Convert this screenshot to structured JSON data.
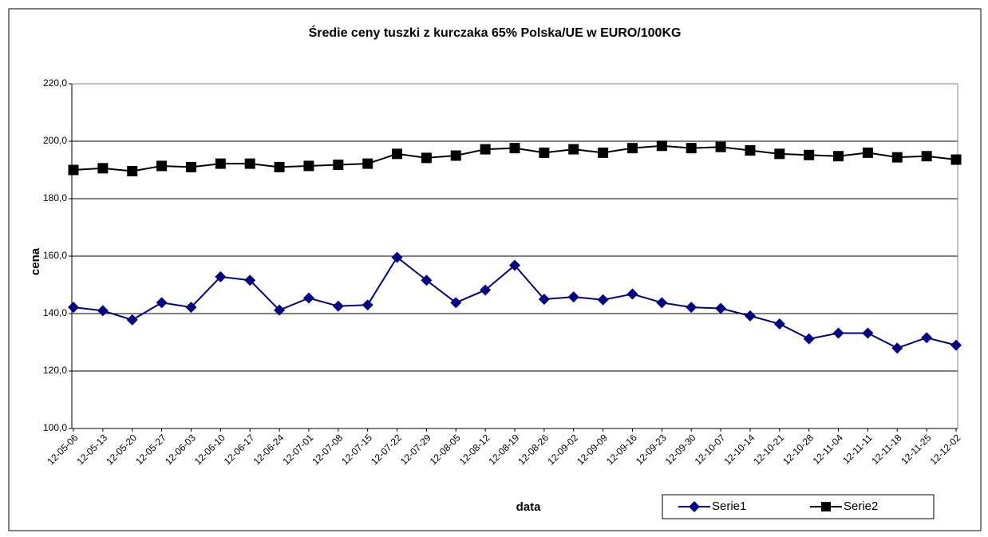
{
  "chart_data": {
    "type": "line",
    "title": "Średie ceny tuszki z kurczaka 65% Polska/UE w EURO/100KG",
    "x_label": "data",
    "y_label": "cena",
    "categories": [
      "12-05-06",
      "12-05-13",
      "12-05-20",
      "12-05-27",
      "12-06-03",
      "12-06-10",
      "12-06-17",
      "12-06-24",
      "12-07-01",
      "12-07-08",
      "12-07-15",
      "12-07-22",
      "12-07-29",
      "12-08-05",
      "12-08-12",
      "12-08-19",
      "12-08-26",
      "12-09-02",
      "12-09-09",
      "12-09-16",
      "12-09-23",
      "12-09-30",
      "12-10-07",
      "12-10-14",
      "12-10-21",
      "12-10-28",
      "12-11-04",
      "12-11-11",
      "12-11-18",
      "12-11-25",
      "12-12-02"
    ],
    "series": [
      {
        "name": "Serie1",
        "color": "#000080",
        "marker": "diamond",
        "values": [
          142.2,
          141,
          137.8,
          143.8,
          142.2,
          152.8,
          151.6,
          141.2,
          145.4,
          142.6,
          143,
          159.6,
          151.6,
          143.8,
          148.2,
          156.8,
          145,
          145.8,
          144.8,
          146.8,
          143.8,
          142.2,
          141.8,
          139.2,
          136.4,
          131.2,
          133.2,
          133.2,
          128,
          131.6,
          129
        ]
      },
      {
        "name": "Serie2",
        "color": "#000000",
        "marker": "square",
        "values": [
          190,
          190.6,
          189.6,
          191.4,
          191,
          192.2,
          192.2,
          191,
          191.4,
          191.8,
          192.2,
          195.6,
          194.2,
          195,
          197.2,
          197.6,
          196,
          197.2,
          196,
          197.6,
          198.4,
          197.6,
          198,
          196.8,
          195.6,
          195.2,
          194.8,
          196,
          194.4,
          194.8,
          193.6
        ]
      }
    ],
    "ylim": [
      100,
      220
    ],
    "yticks": [
      {
        "value": 100,
        "label": "100,0"
      },
      {
        "value": 120,
        "label": "120,0"
      },
      {
        "value": 140,
        "label": "140,0"
      },
      {
        "value": 160,
        "label": "160,0"
      },
      {
        "value": 180,
        "label": "180,0"
      },
      {
        "value": 200,
        "label": "200,0"
      },
      {
        "value": 220,
        "label": "220,0"
      }
    ],
    "grid": true,
    "legend": "bottom-right"
  }
}
